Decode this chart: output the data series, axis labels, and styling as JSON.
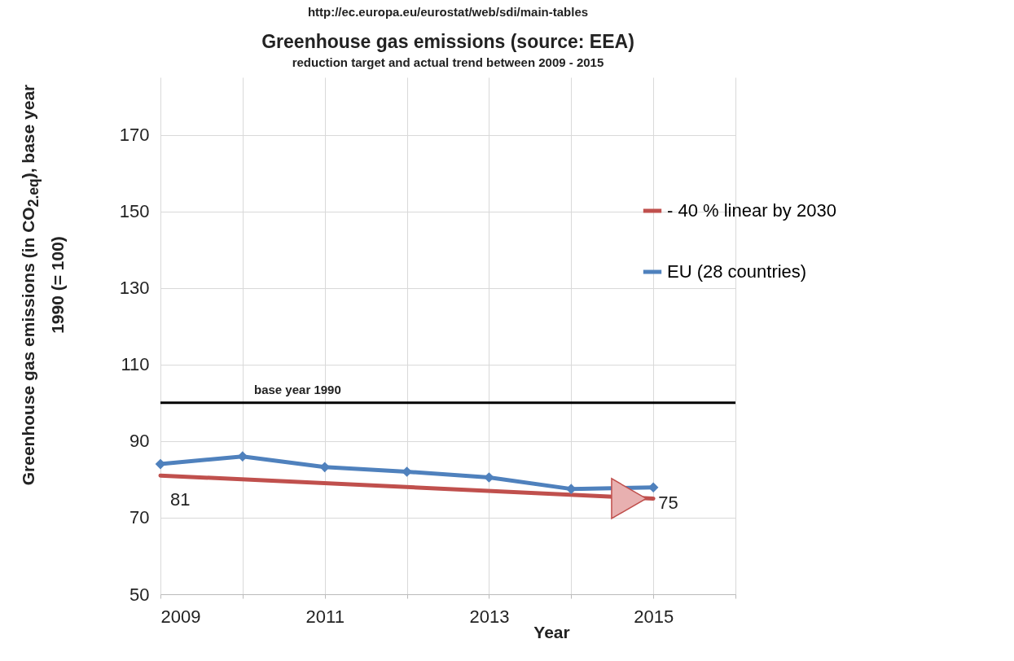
{
  "chart_data": {
    "type": "line",
    "title": "Greenhouse gas emissions (source: EEA)",
    "subtitle": "reduction target and actual trend between 2009 - 2015",
    "xlabel": "Year",
    "ylabel": "Greenhouse gas emissions (in CO$_{2.eq}$), base year 1990 (= 100)",
    "annotations": [
      "http://ec.europa.eu/eurostat/web/sdi/main-tables",
      {
        "text": "81",
        "x": 2009,
        "y": 81
      },
      {
        "text": "75",
        "x": 2015,
        "y": 75
      }
    ],
    "series": [
      {
        "name": "- 40 % linear by 2030",
        "color": "#c0504d",
        "x": [
          2009,
          2015
        ],
        "values": [
          81,
          75
        ],
        "marker": "none"
      },
      {
        "name": "EU (28 countries)",
        "color": "#4f81bd",
        "x": [
          2009,
          2010,
          2011,
          2012,
          2013,
          2014,
          2015
        ],
        "values": [
          84.0,
          86.0,
          83.2,
          82.0,
          80.5,
          77.5,
          77.9
        ]
      }
    ],
    "xlim": [
      2009,
      2016
    ],
    "xticks": [
      2009,
      {
        "value": 2010,
        "label": null
      },
      2011,
      {
        "value": 2012,
        "label": null
      },
      2013,
      {
        "value": 2014,
        "label": null
      },
      2015,
      {
        "value": 2016,
        "label": null
      }
    ],
    "ylim": [
      50,
      185
    ],
    "yticks": [
      50,
      70,
      90,
      110,
      130,
      150,
      170
    ],
    "ref_lines": [
      {
        "axis": "y",
        "value": 100,
        "label": "base year 1990",
        "color": "#000000"
      }
    ],
    "grid": true,
    "legend": "right",
    "marker": "diamond"
  }
}
